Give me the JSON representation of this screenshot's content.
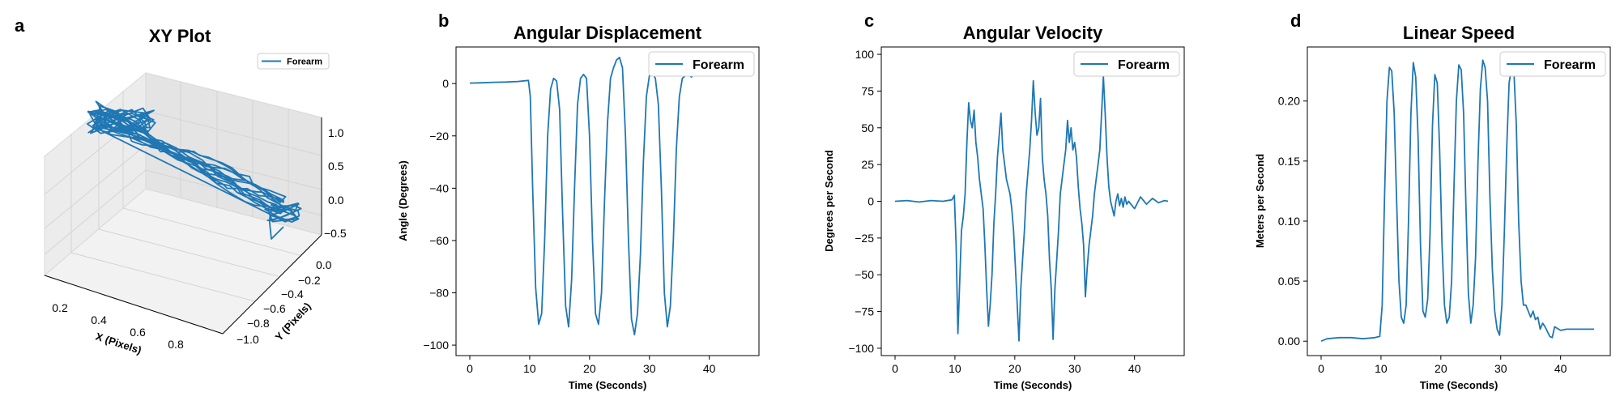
{
  "colors": {
    "series": "#1f77b4",
    "pane": "#ededed",
    "grid": "#d0d0d0"
  },
  "chart_data": [
    {
      "panel": "a",
      "type": "line3d",
      "title": "XY Plot",
      "xlabel": "X (Pixels)",
      "ylabel": "Y (Pixels)",
      "zlabel": "",
      "xlim": [
        0.1,
        0.9
      ],
      "ylim": [
        -1.05,
        0.05
      ],
      "zlim": [
        -0.6,
        1.3
      ],
      "xticks": [
        "0.2",
        "0.4",
        "0.6",
        "0.8"
      ],
      "xtick_values": [
        0.2,
        0.4,
        0.6,
        0.8
      ],
      "yticks": [
        "0.0",
        "−0.2",
        "−0.4",
        "−0.6",
        "−0.8",
        "−1.0"
      ],
      "ytick_values": [
        0.0,
        -0.2,
        -0.4,
        -0.6,
        -0.8,
        -1.0
      ],
      "zticks": [
        "1.0",
        "0.5",
        "0.0",
        "−0.5"
      ],
      "ztick_values": [
        1.0,
        0.5,
        0.0,
        -0.5
      ],
      "legend": [
        "Forearm"
      ],
      "legend_position": "upper right",
      "series": [
        {
          "name": "Forearm"
        }
      ]
    },
    {
      "panel": "b",
      "type": "line",
      "title": "Angular Displacement",
      "xlabel": "Time (Seconds)",
      "ylabel": "Angle (Degrees)",
      "xlim": [
        -2.3,
        48.3
      ],
      "ylim": [
        -104,
        14
      ],
      "xticks": [
        "0",
        "10",
        "20",
        "30",
        "40"
      ],
      "xtick_values": [
        0,
        10,
        20,
        30,
        40
      ],
      "yticks": [
        "0",
        "−20",
        "−40",
        "−60",
        "−80",
        "−100"
      ],
      "ytick_values": [
        0,
        -20,
        -40,
        -60,
        -80,
        -100
      ],
      "legend": [
        "Forearm"
      ],
      "legend_position": "upper right",
      "series": [
        {
          "name": "Forearm",
          "x": [
            0,
            2,
            4,
            6,
            8,
            9.8,
            10.1,
            10.5,
            11,
            11.5,
            12,
            12.5,
            13,
            13.5,
            14,
            14.5,
            15,
            15.5,
            16,
            16.5,
            17,
            17.5,
            18,
            18.5,
            19,
            19.5,
            20,
            20.5,
            21,
            21.5,
            22,
            22.5,
            23,
            23.5,
            24,
            24.5,
            25,
            25.5,
            26,
            26.5,
            27,
            27.5,
            28,
            28.5,
            29,
            29.5,
            30,
            30.5,
            31,
            31.5,
            32,
            32.5,
            33,
            33.5,
            34,
            34.5,
            35,
            35.5,
            36,
            36.5,
            37,
            37.5,
            38,
            38.5,
            39,
            39.5,
            40,
            41,
            42,
            43,
            44,
            45,
            45.6
          ],
          "y": [
            0.2,
            0.3,
            0.5,
            0.6,
            0.8,
            1.2,
            -5,
            -40,
            -78,
            -92,
            -88,
            -60,
            -20,
            -2,
            2,
            1,
            -10,
            -50,
            -85,
            -93,
            -75,
            -40,
            -8,
            2,
            3.5,
            2,
            -20,
            -60,
            -88,
            -92,
            -80,
            -45,
            -15,
            2,
            6,
            9,
            10,
            6,
            -20,
            -60,
            -90,
            -96,
            -88,
            -65,
            -30,
            -5,
            3,
            4,
            2,
            -8,
            -40,
            -80,
            -93,
            -85,
            -60,
            -25,
            -5,
            2,
            3,
            3.5,
            2.5,
            3.5,
            3,
            3.5,
            4,
            3.5,
            3.6,
            4,
            3.5,
            3.7,
            3.8,
            4,
            3.9
          ]
        }
      ]
    },
    {
      "panel": "c",
      "type": "line",
      "title": "Angular Velocity",
      "xlabel": "Time (Seconds)",
      "ylabel": "Degrees per Second",
      "xlim": [
        -2.3,
        48.3
      ],
      "ylim": [
        -105,
        105
      ],
      "xticks": [
        "0",
        "10",
        "20",
        "30",
        "40"
      ],
      "xtick_values": [
        0,
        10,
        20,
        30,
        40
      ],
      "yticks": [
        "100",
        "75",
        "50",
        "25",
        "0",
        "−25",
        "−50",
        "−75",
        "−100"
      ],
      "ytick_values": [
        100,
        75,
        50,
        25,
        0,
        -25,
        -50,
        -75,
        -100
      ],
      "legend": [
        "Forearm"
      ],
      "legend_position": "upper right",
      "series": [
        {
          "name": "Forearm",
          "x": [
            0,
            2,
            4,
            6,
            8,
            9.5,
            9.9,
            10.2,
            10.5,
            10.8,
            11.1,
            11.4,
            11.7,
            12,
            12.3,
            12.6,
            12.9,
            13.2,
            13.5,
            13.8,
            14.1,
            14.4,
            14.7,
            15,
            15.3,
            15.6,
            15.9,
            16.2,
            16.5,
            16.8,
            17.1,
            17.4,
            17.7,
            18,
            18.3,
            18.6,
            18.9,
            19.2,
            19.5,
            19.8,
            20.1,
            20.4,
            20.7,
            21,
            21.3,
            21.6,
            21.9,
            22.2,
            22.5,
            22.8,
            23.1,
            23.4,
            23.7,
            24,
            24.3,
            24.6,
            24.9,
            25.2,
            25.5,
            25.8,
            26.1,
            26.4,
            26.7,
            27,
            27.3,
            27.6,
            27.9,
            28.2,
            28.5,
            28.8,
            29.1,
            29.4,
            29.7,
            30,
            30.3,
            30.6,
            30.9,
            31.2,
            31.5,
            31.8,
            32.1,
            32.4,
            32.7,
            33,
            33.3,
            33.6,
            33.9,
            34.2,
            34.5,
            34.8,
            35.1,
            35.4,
            35.7,
            36,
            36.3,
            36.6,
            36.9,
            37.2,
            37.5,
            37.8,
            38.1,
            38.4,
            38.7,
            39,
            40,
            41,
            42,
            43,
            44,
            45,
            45.6
          ],
          "y": [
            0,
            0.5,
            -0.5,
            0.5,
            0,
            1,
            4,
            -30,
            -90,
            -55,
            -20,
            -10,
            5,
            40,
            67,
            55,
            50,
            62,
            40,
            30,
            15,
            5,
            -5,
            -30,
            -60,
            -85,
            -70,
            -50,
            -15,
            5,
            30,
            45,
            60,
            35,
            25,
            15,
            10,
            5,
            -5,
            -20,
            -45,
            -70,
            -95,
            -60,
            -40,
            -20,
            5,
            20,
            35,
            55,
            82,
            60,
            45,
            50,
            70,
            30,
            15,
            5,
            -10,
            -40,
            -60,
            -94,
            -60,
            -40,
            -20,
            5,
            15,
            25,
            35,
            55,
            40,
            50,
            35,
            40,
            30,
            10,
            -5,
            -15,
            -30,
            -65,
            -45,
            -30,
            -20,
            -10,
            5,
            15,
            25,
            35,
            60,
            85,
            60,
            30,
            10,
            0,
            -5,
            -10,
            0,
            5,
            -3,
            2,
            -4,
            3,
            -2,
            0,
            -5,
            3,
            -2,
            2,
            -1,
            0.5,
            0
          ]
        }
      ]
    },
    {
      "panel": "d",
      "type": "line",
      "title": "Linear Speed",
      "xlabel": "Time (Seconds)",
      "ylabel": "Meters per Second",
      "xlim": [
        -2.3,
        48.3
      ],
      "ylim": [
        -0.012,
        0.245
      ],
      "xticks": [
        "0",
        "10",
        "20",
        "30",
        "40"
      ],
      "xtick_values": [
        0,
        10,
        20,
        30,
        40
      ],
      "yticks": [
        "0.20",
        "0.15",
        "0.10",
        "0.05",
        "0.00"
      ],
      "ytick_values": [
        0.2,
        0.15,
        0.1,
        0.05,
        0.0
      ],
      "legend": [
        "Forearm"
      ],
      "legend_position": "upper right",
      "series": [
        {
          "name": "Forearm",
          "x": [
            0,
            1,
            3,
            5,
            7,
            9,
            9.8,
            10.2,
            10.6,
            11,
            11.4,
            11.8,
            12.2,
            12.6,
            13,
            13.4,
            13.8,
            14.2,
            14.6,
            15,
            15.4,
            15.8,
            16.2,
            16.6,
            17,
            17.4,
            17.8,
            18.2,
            18.6,
            19,
            19.4,
            19.8,
            20.2,
            20.6,
            21,
            21.4,
            21.8,
            22.2,
            22.6,
            23,
            23.4,
            23.8,
            24.2,
            24.6,
            25,
            25.4,
            25.8,
            26.2,
            26.6,
            27,
            27.4,
            27.8,
            28.2,
            28.6,
            29,
            29.4,
            29.8,
            30.2,
            30.6,
            31,
            31.4,
            31.8,
            32.2,
            32.6,
            33,
            33.4,
            33.8,
            34.2,
            34.6,
            35,
            35.4,
            35.8,
            36.2,
            36.6,
            37,
            37.4,
            37.8,
            38.2,
            38.6,
            39,
            40,
            41,
            42,
            43,
            44,
            45,
            45.6
          ],
          "y": [
            0.0,
            0.002,
            0.003,
            0.003,
            0.002,
            0.003,
            0.004,
            0.03,
            0.12,
            0.2,
            0.228,
            0.225,
            0.19,
            0.12,
            0.05,
            0.02,
            0.015,
            0.03,
            0.1,
            0.19,
            0.232,
            0.22,
            0.17,
            0.08,
            0.025,
            0.02,
            0.035,
            0.09,
            0.18,
            0.222,
            0.215,
            0.16,
            0.08,
            0.03,
            0.015,
            0.02,
            0.05,
            0.13,
            0.2,
            0.23,
            0.226,
            0.19,
            0.11,
            0.04,
            0.015,
            0.03,
            0.07,
            0.15,
            0.21,
            0.234,
            0.228,
            0.2,
            0.12,
            0.06,
            0.025,
            0.01,
            0.005,
            0.03,
            0.09,
            0.16,
            0.215,
            0.227,
            0.225,
            0.18,
            0.1,
            0.05,
            0.03,
            0.03,
            0.025,
            0.02,
            0.025,
            0.018,
            0.02,
            0.01,
            0.015,
            0.012,
            0.008,
            0.004,
            0.003,
            0.012,
            0.009,
            0.01,
            0.01,
            0.01,
            0.01,
            0.01,
            0.01
          ]
        }
      ]
    }
  ]
}
